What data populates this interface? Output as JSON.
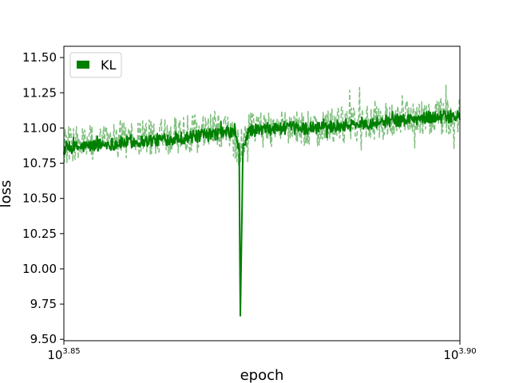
{
  "chart_data": {
    "type": "line",
    "title": "",
    "xlabel": "epoch",
    "ylabel": "loss",
    "xscale": "log",
    "xlim": [
      7080,
      7943
    ],
    "ylim": [
      9.49,
      11.58
    ],
    "x_ticks": [
      {
        "value": 7079.46,
        "base": "10",
        "exp": "3.85"
      },
      {
        "value": 7943.28,
        "base": "10",
        "exp": "3.90"
      }
    ],
    "y_ticks": [
      {
        "value": 9.5,
        "label": "9.50"
      },
      {
        "value": 9.75,
        "label": "9.75"
      },
      {
        "value": 10.0,
        "label": "10.00"
      },
      {
        "value": 10.25,
        "label": "10.25"
      },
      {
        "value": 10.5,
        "label": "10.50"
      },
      {
        "value": 10.75,
        "label": "10.75"
      },
      {
        "value": 11.0,
        "label": "11.00"
      },
      {
        "value": 11.25,
        "label": "11.25"
      },
      {
        "value": 11.5,
        "label": "11.50"
      }
    ],
    "grid": false,
    "legend": {
      "placement": "top-left",
      "entries": [
        {
          "name": "KL",
          "color": "#008000"
        }
      ]
    },
    "series": [
      {
        "name": "KL",
        "style": "solid",
        "color": "#008000",
        "x": [
          7080,
          7150,
          7220,
          7290,
          7360,
          7420,
          7440,
          7450,
          7452,
          7458,
          7470,
          7540,
          7610,
          7680,
          7750,
          7820,
          7890,
          7943
        ],
        "y": [
          10.85,
          10.88,
          10.9,
          10.92,
          10.94,
          10.97,
          10.97,
          10.85,
          9.6,
          10.85,
          10.98,
          11.0,
          11.0,
          11.02,
          11.04,
          11.06,
          11.08,
          11.08
        ]
      },
      {
        "name": "",
        "style": "dashed",
        "color": "#7fbf7f",
        "x": [
          7080,
          7150,
          7220,
          7290,
          7360,
          7420,
          7450,
          7470,
          7540,
          7610,
          7680,
          7750,
          7820,
          7890,
          7943
        ],
        "y": [
          10.88,
          10.9,
          10.92,
          10.94,
          10.97,
          11.0,
          10.85,
          10.98,
          11.0,
          11.0,
          11.02,
          11.04,
          11.06,
          11.08,
          11.08
        ]
      }
    ]
  }
}
